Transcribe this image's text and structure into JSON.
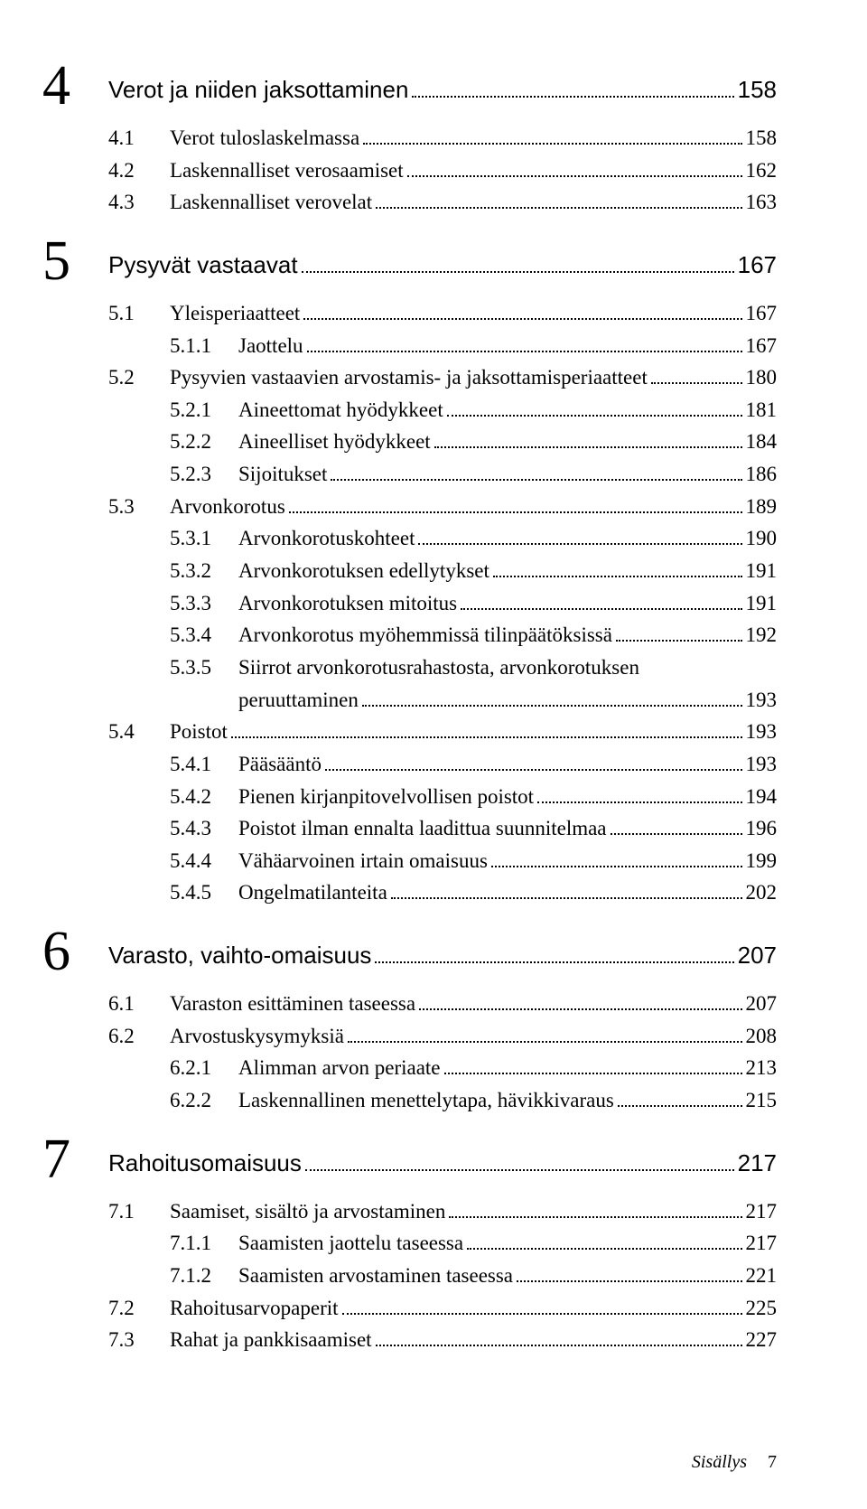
{
  "chapters": [
    {
      "num": "4",
      "title": "Verot ja niiden jaksottaminen",
      "page": "158",
      "entries": [
        {
          "level": 1,
          "num": "4.1",
          "text": "Verot tuloslaskelmassa",
          "page": "158"
        },
        {
          "level": 1,
          "num": "4.2",
          "text": "Laskennalliset verosaamiset",
          "page": "162"
        },
        {
          "level": 1,
          "num": "4.3",
          "text": "Laskennalliset verovelat",
          "page": "163"
        }
      ]
    },
    {
      "num": "5",
      "title": "Pysyvät vastaavat",
      "page": "167",
      "entries": [
        {
          "level": 1,
          "num": "5.1",
          "text": "Yleisperiaatteet",
          "page": "167"
        },
        {
          "level": 2,
          "num": "5.1.1",
          "text": "Jaottelu",
          "page": "167"
        },
        {
          "level": 1,
          "num": "5.2",
          "text": "Pysyvien vastaavien arvostamis- ja jaksottamisperiaatteet",
          "page": "180"
        },
        {
          "level": 2,
          "num": "5.2.1",
          "text": "Aineettomat hyödykkeet",
          "page": "181"
        },
        {
          "level": 2,
          "num": "5.2.2",
          "text": "Aineelliset hyödykkeet",
          "page": "184"
        },
        {
          "level": 2,
          "num": "5.2.3",
          "text": "Sijoitukset",
          "page": "186"
        },
        {
          "level": 1,
          "num": "5.3",
          "text": "Arvonkorotus",
          "page": "189"
        },
        {
          "level": 2,
          "num": "5.3.1",
          "text": "Arvonkorotuskohteet",
          "page": "190"
        },
        {
          "level": 2,
          "num": "5.3.2",
          "text": "Arvonkorotuksen edellytykset",
          "page": "191"
        },
        {
          "level": 2,
          "num": "5.3.3",
          "text": "Arvonkorotuksen mitoitus",
          "page": "191"
        },
        {
          "level": 2,
          "num": "5.3.4",
          "text": "Arvonkorotus myöhemmissä tilinpäätöksissä",
          "page": "192"
        },
        {
          "level": 2,
          "num": "5.3.5",
          "text": "Siirrot arvonkorotusrahastosta, arvonkorotuksen",
          "wrap": "peruuttaminen",
          "page": "193"
        },
        {
          "level": 1,
          "num": "5.4",
          "text": "Poistot",
          "page": "193"
        },
        {
          "level": 2,
          "num": "5.4.1",
          "text": "Pääsääntö",
          "page": "193"
        },
        {
          "level": 2,
          "num": "5.4.2",
          "text": "Pienen kirjanpitovelvollisen poistot",
          "page": "194"
        },
        {
          "level": 2,
          "num": "5.4.3",
          "text": "Poistot ilman ennalta laadittua suunnitelmaa",
          "page": "196"
        },
        {
          "level": 2,
          "num": "5.4.4",
          "text": "Vähäarvoinen irtain omaisuus",
          "page": "199"
        },
        {
          "level": 2,
          "num": "5.4.5",
          "text": "Ongelmatilanteita",
          "page": "202"
        }
      ]
    },
    {
      "num": "6",
      "title": "Varasto, vaihto-omaisuus",
      "page": "207",
      "entries": [
        {
          "level": 1,
          "num": "6.1",
          "text": "Varaston esittäminen taseessa",
          "page": "207"
        },
        {
          "level": 1,
          "num": "6.2",
          "text": "Arvostuskysymyksiä",
          "page": "208"
        },
        {
          "level": 2,
          "num": "6.2.1",
          "text": "Alimman arvon periaate",
          "page": "213"
        },
        {
          "level": 2,
          "num": "6.2.2",
          "text": "Laskennallinen menettelytapa, hävikkivaraus",
          "page": "215"
        }
      ]
    },
    {
      "num": "7",
      "title": "Rahoitusomaisuus",
      "page": "217",
      "entries": [
        {
          "level": 1,
          "num": "7.1",
          "text": "Saamiset, sisältö ja arvostaminen",
          "page": "217"
        },
        {
          "level": 2,
          "num": "7.1.1",
          "text": "Saamisten jaottelu taseessa",
          "page": "217"
        },
        {
          "level": 2,
          "num": "7.1.2",
          "text": "Saamisten arvostaminen taseessa",
          "page": "221"
        },
        {
          "level": 1,
          "num": "7.2",
          "text": "Rahoitusarvopaperit",
          "page": "225"
        },
        {
          "level": 1,
          "num": "7.3",
          "text": "Rahat ja pankkisaamiset",
          "page": "227"
        }
      ]
    }
  ],
  "footer": {
    "label": "Sisällys",
    "page": "7"
  }
}
